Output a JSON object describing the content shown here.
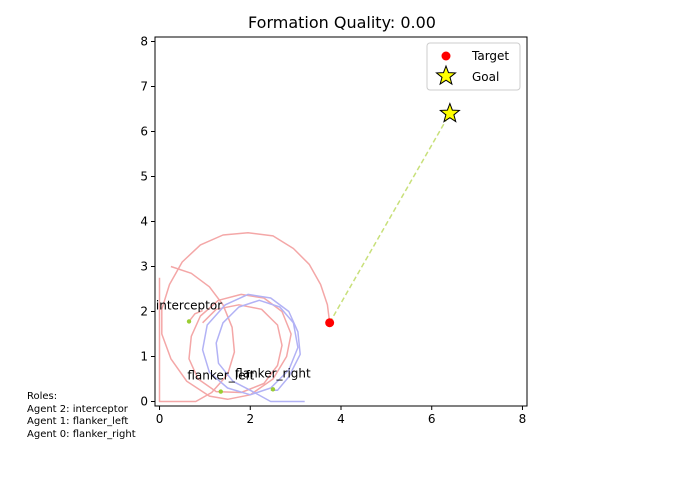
{
  "chart_data": {
    "type": "scatter",
    "title": "Formation Quality: 0.00",
    "xlim": [
      -0.1,
      8.1
    ],
    "ylim": [
      -0.1,
      8.1
    ],
    "xticks": [
      0,
      2,
      4,
      6,
      8
    ],
    "yticks": [
      0,
      1,
      2,
      3,
      4,
      5,
      6,
      7,
      8
    ],
    "grid": false,
    "legend": {
      "placement": "upper right",
      "entries": [
        {
          "label": "Target",
          "marker": "circle",
          "color": "#ff0000"
        },
        {
          "label": "Goal",
          "marker": "star",
          "color": "#ffff00"
        }
      ]
    },
    "target": {
      "x": 3.75,
      "y": 1.75,
      "color": "#ff0000"
    },
    "goal": {
      "x": 6.4,
      "y": 6.4,
      "color": "#ffff00"
    },
    "target_to_goal_line": {
      "color": "#c8e07a",
      "style": "dashed"
    },
    "agent_color": "#9acd32",
    "agents": [
      {
        "label": "interceptor",
        "x": 0.65,
        "y": 1.78
      },
      {
        "label": "flanker_left",
        "x": 1.35,
        "y": 0.22
      },
      {
        "label": "flanker_right",
        "x": 2.5,
        "y": 0.27
      }
    ],
    "trajectories": [
      {
        "name": "red",
        "color": "#f4a7a7",
        "points": [
          [
            3.75,
            1.75
          ],
          [
            3.7,
            2.15
          ],
          [
            3.55,
            2.6
          ],
          [
            3.3,
            3.05
          ],
          [
            2.95,
            3.4
          ],
          [
            2.5,
            3.68
          ],
          [
            1.95,
            3.75
          ],
          [
            1.4,
            3.7
          ],
          [
            0.9,
            3.48
          ],
          [
            0.5,
            3.1
          ],
          [
            0.22,
            2.6
          ],
          [
            0.05,
            2.05
          ],
          [
            0.05,
            1.5
          ],
          [
            0.25,
            0.95
          ],
          [
            0.6,
            0.45
          ],
          [
            1.1,
            0.12
          ],
          [
            1.5,
            0.05
          ],
          [
            2.0,
            0.15
          ],
          [
            2.5,
            0.5
          ],
          [
            2.8,
            1.0
          ],
          [
            2.9,
            1.5
          ],
          [
            2.7,
            2.0
          ],
          [
            2.3,
            2.3
          ],
          [
            1.8,
            2.38
          ],
          [
            1.3,
            2.25
          ],
          [
            0.9,
            1.9
          ],
          [
            0.7,
            1.45
          ],
          [
            0.65,
            0.95
          ],
          [
            0.85,
            0.5
          ],
          [
            1.25,
            0.22
          ],
          [
            1.8,
            0.2
          ],
          [
            2.3,
            0.4
          ],
          [
            2.6,
            0.8
          ],
          [
            2.7,
            1.25
          ],
          [
            2.6,
            1.7
          ],
          [
            2.25,
            2.05
          ],
          [
            1.75,
            2.15
          ],
          [
            1.25,
            2.05
          ],
          [
            0.95,
            1.75
          ]
        ]
      },
      {
        "name": "red-left",
        "color": "#f4a7a7",
        "points": [
          [
            0.25,
            3.0
          ],
          [
            0.7,
            2.85
          ],
          [
            1.1,
            2.55
          ],
          [
            1.4,
            2.15
          ],
          [
            1.6,
            1.65
          ],
          [
            1.65,
            1.1
          ],
          [
            1.5,
            0.6
          ],
          [
            1.15,
            0.2
          ],
          [
            0.8,
            0.0
          ],
          [
            0.2,
            0.0
          ],
          [
            0.0,
            0.0
          ],
          [
            0.0,
            2.75
          ]
        ]
      },
      {
        "name": "blue",
        "color": "#b2b2f5",
        "points": [
          [
            3.2,
            0.0
          ],
          [
            2.45,
            0.0
          ],
          [
            2.0,
            0.25
          ],
          [
            1.62,
            0.45
          ],
          [
            1.3,
            0.85
          ],
          [
            1.25,
            1.3
          ],
          [
            1.4,
            1.75
          ],
          [
            1.75,
            2.1
          ],
          [
            2.2,
            2.25
          ],
          [
            2.65,
            2.1
          ],
          [
            2.95,
            1.75
          ],
          [
            3.05,
            1.2
          ],
          [
            2.85,
            0.7
          ],
          [
            2.45,
            0.3
          ],
          [
            2.0,
            0.15
          ],
          [
            1.5,
            0.3
          ],
          [
            1.1,
            0.65
          ],
          [
            0.95,
            1.15
          ],
          [
            1.05,
            1.7
          ],
          [
            1.45,
            2.15
          ],
          [
            1.95,
            2.38
          ],
          [
            2.45,
            2.3
          ],
          [
            2.85,
            2.0
          ],
          [
            3.05,
            1.55
          ],
          [
            3.1,
            1.05
          ],
          [
            2.85,
            0.55
          ],
          [
            2.6,
            0.25
          ],
          [
            2.45,
            0.25
          ]
        ]
      },
      {
        "name": "interceptor-tail",
        "color": "#f4a7a7",
        "points": [
          [
            0.65,
            1.78
          ],
          [
            0.78,
            1.95
          ],
          [
            0.95,
            2.02
          ]
        ]
      }
    ]
  },
  "roles_text": "Roles:\nAgent 2: interceptor\nAgent 1: flanker_left\nAgent 0: flanker_right"
}
